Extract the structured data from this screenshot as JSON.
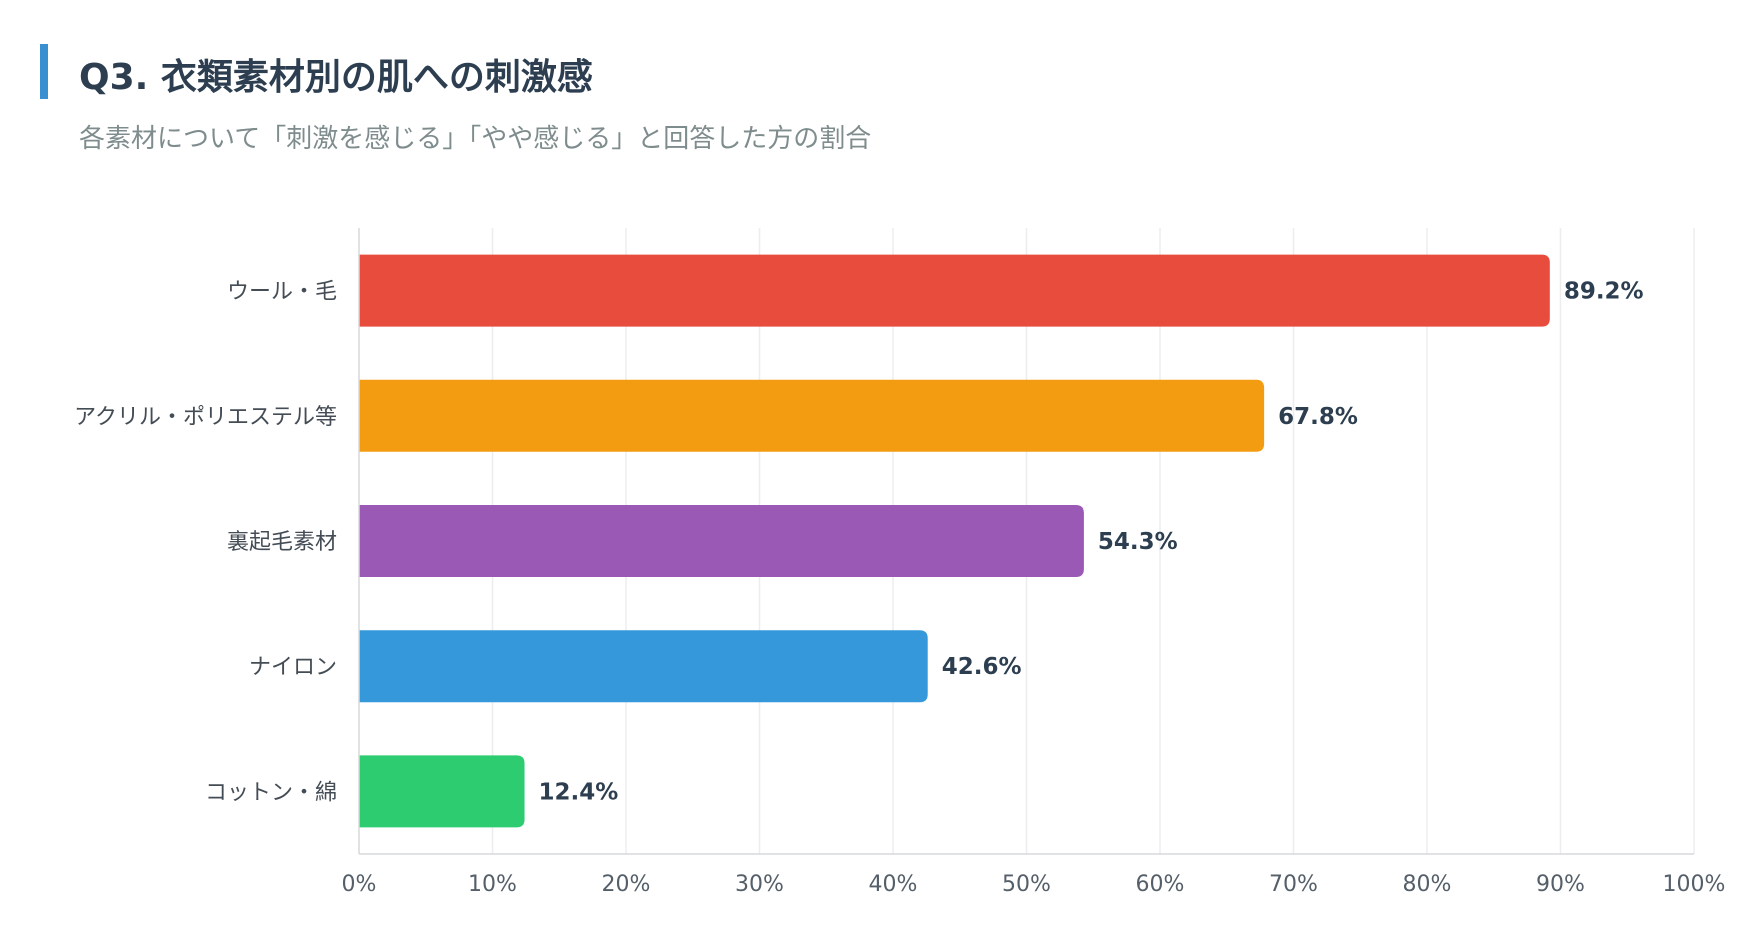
{
  "header": {
    "title": "Q3. 衣類素材別の肌への刺激感",
    "subtitle": "各素材について「刺激を感じる」「やや感じる」と回答した方の割合",
    "accent_color": "#3a8fd1"
  },
  "chart_data": {
    "type": "bar",
    "orientation": "horizontal",
    "title": "",
    "xlabel": "",
    "ylabel": "",
    "xlim": [
      0,
      100
    ],
    "grid": true,
    "categories": [
      "ウール・毛",
      "アクリル・ポリエステル等",
      "裏起毛素材",
      "ナイロン",
      "コットン・綿"
    ],
    "values": [
      89.2,
      67.8,
      54.3,
      42.6,
      12.4
    ],
    "value_labels": [
      "89.2%",
      "67.8%",
      "54.3%",
      "42.6%",
      "12.4%"
    ],
    "colors": [
      "#e74c3c",
      "#f39c12",
      "#9b59b6",
      "#3498db",
      "#2ecc71"
    ],
    "x_ticks": [
      "0%",
      "10%",
      "20%",
      "30%",
      "40%",
      "50%",
      "60%",
      "70%",
      "80%",
      "90%",
      "100%"
    ],
    "x_tick_values": [
      0,
      10,
      20,
      30,
      40,
      50,
      60,
      70,
      80,
      90,
      100
    ]
  }
}
